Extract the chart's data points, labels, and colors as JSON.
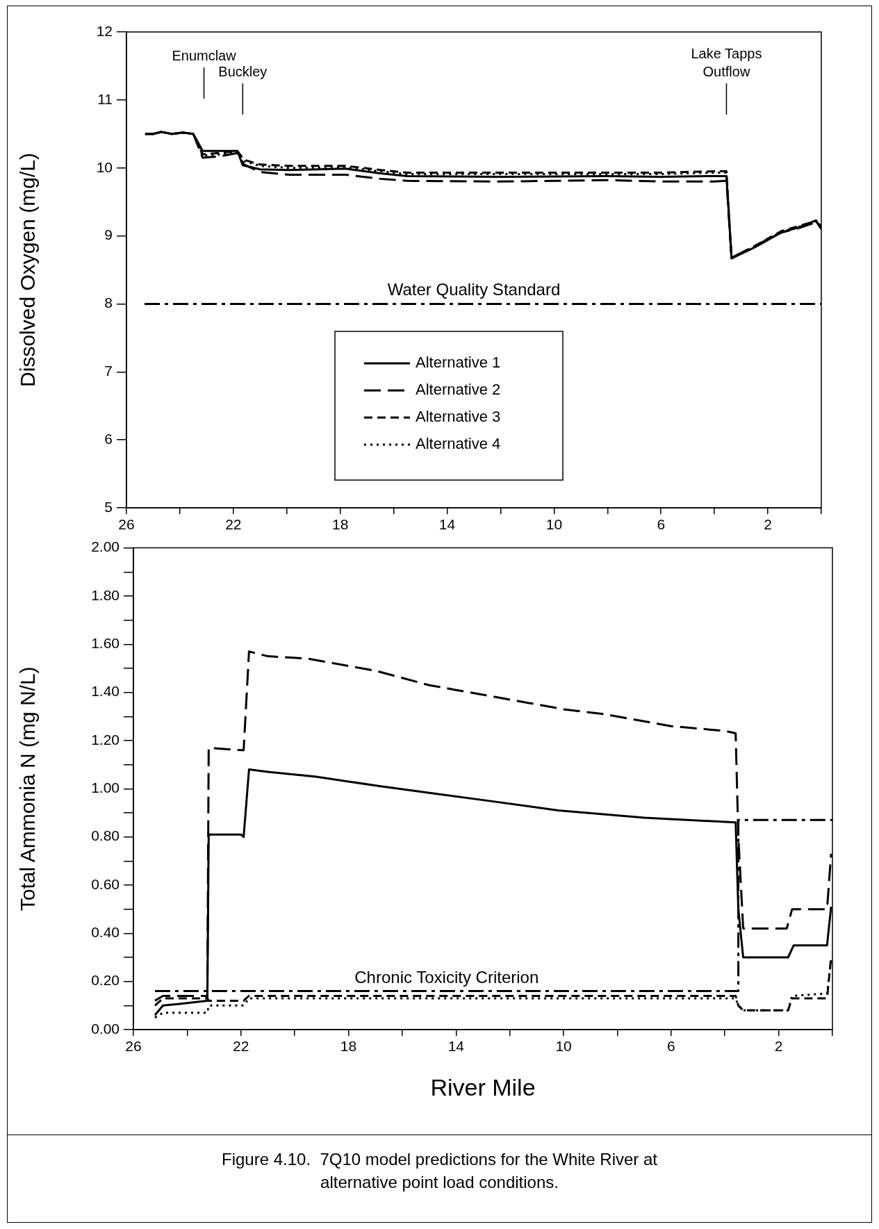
{
  "chart_data": [
    {
      "type": "line",
      "ylabel": "Dissolved Oxygen (mg/L)",
      "xlim": [
        26,
        0
      ],
      "ylim": [
        5,
        12
      ],
      "xticks": [
        26,
        {
          "value": 24,
          "label": null
        },
        22,
        {
          "value": 20,
          "label": null
        },
        18,
        {
          "value": 16,
          "label": null
        },
        14,
        {
          "value": 12,
          "label": null
        },
        10,
        {
          "value": 8,
          "label": null
        },
        6,
        {
          "value": 4,
          "label": null
        },
        2,
        {
          "value": 0,
          "label": null
        }
      ],
      "yticks": [
        5,
        6,
        7,
        8,
        9,
        10,
        11,
        12
      ],
      "legend": "bottom",
      "series": [
        {
          "name": "Alternative 1",
          "color": "#000000",
          "line_style": "solid",
          "x": [
            25.3,
            25.0,
            24.7,
            24.3,
            23.9,
            23.5,
            23.15,
            22.5,
            21.85,
            21.65,
            21.0,
            19.9,
            17.8,
            16.5,
            15.5,
            12,
            8,
            6,
            4,
            3.55,
            3.36,
            2.5,
            1.5,
            0.8,
            0.2,
            0
          ],
          "values": [
            10.5,
            10.5,
            10.53,
            10.5,
            10.52,
            10.5,
            10.25,
            10.25,
            10.25,
            10.04,
            9.98,
            9.97,
            9.99,
            9.92,
            9.88,
            9.87,
            9.88,
            9.87,
            9.88,
            9.88,
            8.67,
            8.83,
            9.05,
            9.13,
            9.23,
            9.1
          ]
        },
        {
          "name": "Alternative 2",
          "color": "#000000",
          "line_style": "longdash",
          "x": [
            25.3,
            25.0,
            24.7,
            24.3,
            23.9,
            23.5,
            23.15,
            22.5,
            21.85,
            21.6,
            21.0,
            19.9,
            17.8,
            16.5,
            15.5,
            12,
            8,
            6,
            4,
            3.55,
            3.36,
            2.5,
            1.5,
            0.8,
            0.2,
            0
          ],
          "values": [
            10.5,
            10.5,
            10.53,
            10.5,
            10.52,
            10.5,
            10.15,
            10.17,
            10.22,
            10.05,
            9.94,
            9.9,
            9.9,
            9.84,
            9.81,
            9.8,
            9.82,
            9.8,
            9.8,
            9.81,
            8.68,
            8.85,
            9.05,
            9.12,
            9.2,
            9.15
          ]
        },
        {
          "name": "Alternative 3",
          "color": "#000000",
          "line_style": "dashed",
          "x": [
            25.3,
            25.0,
            24.7,
            24.3,
            23.9,
            23.5,
            23.15,
            22.5,
            21.85,
            21.6,
            21.0,
            19.9,
            17.8,
            16.5,
            15.5,
            12,
            8,
            6,
            4,
            3.55,
            3.36,
            2.5,
            1.5,
            0.8,
            0.2,
            0
          ],
          "values": [
            10.5,
            10.5,
            10.53,
            10.5,
            10.52,
            10.5,
            10.2,
            10.22,
            10.25,
            10.12,
            10.05,
            10.03,
            10.03,
            9.97,
            9.93,
            9.93,
            9.93,
            9.93,
            9.95,
            9.95,
            8.67,
            8.85,
            9.07,
            9.15,
            9.22,
            9.1
          ]
        },
        {
          "name": "Alternative 4",
          "color": "#000000",
          "line_style": "dotted",
          "x": [
            25.3,
            25.0,
            24.7,
            24.3,
            23.9,
            23.5,
            23.15,
            22.5,
            21.85,
            21.6,
            21.0,
            19.9,
            17.8,
            16.5,
            15.5,
            12,
            8,
            6,
            4,
            3.55,
            3.36,
            2.5,
            1.5,
            0.8,
            0.2,
            0
          ],
          "values": [
            10.5,
            10.5,
            10.53,
            10.5,
            10.52,
            10.5,
            10.18,
            10.2,
            10.24,
            10.1,
            10.03,
            10.0,
            10.01,
            9.95,
            9.91,
            9.91,
            9.91,
            9.91,
            9.93,
            9.93,
            8.67,
            8.84,
            9.06,
            9.14,
            9.22,
            9.1
          ]
        }
      ],
      "ref_lines": [
        {
          "axis": "y",
          "value": 8,
          "label": "Water Quality Standard",
          "color": "#000000",
          "line_style": "dashdot"
        }
      ],
      "annotations": [
        {
          "text": "Enumclaw",
          "x": 23.1
        },
        {
          "text": "Buckley",
          "x": 21.65
        },
        {
          "text": "Lake Tapps\nOutflow",
          "x": 3.55
        }
      ]
    },
    {
      "type": "line",
      "xlabel": "River Mile",
      "ylabel": "Total Ammonia N (mg N/L)",
      "xlim": [
        26,
        0
      ],
      "ylim": [
        0,
        2
      ],
      "xticks": [
        26,
        {
          "value": 24,
          "label": null
        },
        22,
        {
          "value": 20,
          "label": null
        },
        18,
        {
          "value": 16,
          "label": null
        },
        14,
        {
          "value": 12,
          "label": null
        },
        10,
        {
          "value": 8,
          "label": null
        },
        6,
        {
          "value": 4,
          "label": null
        },
        2,
        {
          "value": 0,
          "label": null
        }
      ],
      "yticks": [
        {
          "value": 0,
          "label": "0.00"
        },
        {
          "value": 0.1,
          "label": null
        },
        {
          "value": 0.2,
          "label": "0.20"
        },
        {
          "value": 0.3,
          "label": null
        },
        {
          "value": 0.4,
          "label": "0.40"
        },
        {
          "value": 0.5,
          "label": null
        },
        {
          "value": 0.6,
          "label": "0.60"
        },
        {
          "value": 0.7,
          "label": null
        },
        {
          "value": 0.8,
          "label": "0.80"
        },
        {
          "value": 0.9,
          "label": null
        },
        {
          "value": 1,
          "label": "1.00"
        },
        {
          "value": 1.1,
          "label": null
        },
        {
          "value": 1.2,
          "label": "1.20"
        },
        {
          "value": 1.3,
          "label": null
        },
        {
          "value": 1.4,
          "label": "1.40"
        },
        {
          "value": 1.5,
          "label": null
        },
        {
          "value": 1.6,
          "label": "1.60"
        },
        {
          "value": 1.7,
          "label": null
        },
        {
          "value": 1.8,
          "label": "1.80"
        },
        {
          "value": 1.9,
          "label": null
        },
        {
          "value": 2,
          "label": "2.00"
        }
      ],
      "series": [
        {
          "color": "#000000",
          "line_style": "solid",
          "x": [
            25.2,
            24.9,
            24,
            23.25,
            23.2,
            22.0,
            21.9,
            21.7,
            21,
            19.2,
            16.8,
            14.8,
            12.8,
            10.2,
            7.0,
            3.6,
            3.5,
            3.32,
            1.65,
            1.44,
            0.2,
            0.05
          ],
          "values": [
            0.06,
            0.1,
            0.11,
            0.12,
            0.81,
            0.81,
            0.8,
            1.08,
            1.07,
            1.05,
            1.01,
            0.98,
            0.95,
            0.91,
            0.88,
            0.86,
            0.5,
            0.3,
            0.3,
            0.35,
            0.35,
            0.51
          ]
        },
        {
          "color": "#000000",
          "line_style": "longdash",
          "x": [
            25.2,
            24.9,
            23.25,
            23.2,
            22.0,
            21.9,
            21.7,
            21,
            19.5,
            18,
            17,
            16,
            15,
            14,
            13,
            12,
            11,
            10,
            8.5,
            7,
            6,
            5,
            4,
            3.6,
            3.5,
            3.32,
            1.7,
            1.5,
            0.2,
            0.05
          ],
          "values": [
            0.12,
            0.14,
            0.14,
            1.17,
            1.16,
            1.16,
            1.57,
            1.55,
            1.54,
            1.51,
            1.49,
            1.46,
            1.43,
            1.41,
            1.39,
            1.37,
            1.35,
            1.33,
            1.31,
            1.28,
            1.26,
            1.25,
            1.24,
            1.23,
            0.8,
            0.42,
            0.42,
            0.5,
            0.5,
            0.73
          ]
        },
        {
          "color": "#000000",
          "line_style": "dashed",
          "x": [
            25.2,
            24.9,
            23.25,
            23.2,
            21.9,
            21.7,
            3.6,
            3.5,
            3.32,
            1.65,
            1.5,
            0.2,
            0.05
          ],
          "values": [
            0.1,
            0.13,
            0.13,
            0.12,
            0.12,
            0.14,
            0.14,
            0.1,
            0.08,
            0.08,
            0.13,
            0.13,
            0.3
          ]
        },
        {
          "color": "#000000",
          "line_style": "dotted",
          "x": [
            25.2,
            24.9,
            23.25,
            23.2,
            21.9,
            21.7,
            3.6,
            3.5,
            3.32,
            1.65,
            1.5,
            0.2,
            0.05
          ],
          "values": [
            0.05,
            0.07,
            0.07,
            0.1,
            0.1,
            0.13,
            0.13,
            0.1,
            0.08,
            0.08,
            0.14,
            0.15,
            0.29
          ]
        },
        {
          "name": "Chronic Toxicity Criterion",
          "color": "#000000",
          "line_style": "dashdot",
          "x": [
            25.2,
            3.5,
            3.5,
            0
          ],
          "values": [
            0.16,
            0.16,
            0.87,
            0.87
          ]
        }
      ],
      "annotations": [
        "Figure 4.10.  7Q10 model predictions for the White River at alternative point load conditions."
      ]
    }
  ]
}
